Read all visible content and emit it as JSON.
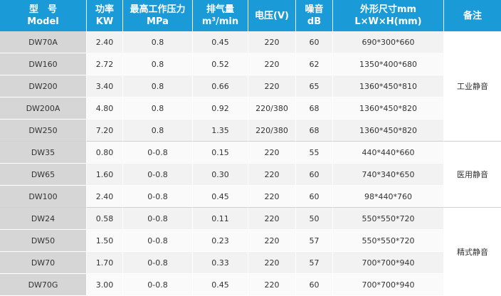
{
  "headers": {
    "model": {
      "l1": "型　号",
      "l2": "Model"
    },
    "power": {
      "l1": "功率",
      "l2": "KW"
    },
    "pressure": {
      "l1": "最高工作压力",
      "l2": "MPa"
    },
    "flow": {
      "l1": "排气量",
      "l2": "m³/min"
    },
    "voltage": {
      "l1": "电压(V)"
    },
    "noise": {
      "l1": "噪音",
      "l2": "dB"
    },
    "dims": {
      "l1": "外形尺寸mm",
      "l2": "L×W×H(mm)"
    },
    "note": {
      "l1": "备注"
    }
  },
  "groups": [
    {
      "note": "工业静音",
      "rows": [
        {
          "model": "DW70A",
          "power": "2.40",
          "pressure": "0.8",
          "flow": "0.45",
          "voltage": "220",
          "noise": "60",
          "dims": "690*300*660"
        },
        {
          "model": "DW160",
          "power": "2.72",
          "pressure": "0.8",
          "flow": "0.52",
          "voltage": "220",
          "noise": "62",
          "dims": "1350*400*680"
        },
        {
          "model": "DW200",
          "power": "3.40",
          "pressure": "0.8",
          "flow": "0.66",
          "voltage": "220",
          "noise": "65",
          "dims": "1360*450*810"
        },
        {
          "model": "DW200A",
          "power": "4.80",
          "pressure": "0.8",
          "flow": "0.92",
          "voltage": "220/380",
          "noise": "68",
          "dims": "1360*450*820"
        },
        {
          "model": "DW250",
          "power": "7.20",
          "pressure": "0.8",
          "flow": "1.35",
          "voltage": "220/380",
          "noise": "68",
          "dims": "1360*450*820"
        }
      ]
    },
    {
      "note": "医用静音",
      "rows": [
        {
          "model": "DW35",
          "power": "0.80",
          "pressure": "0-0.8",
          "flow": "0.15",
          "voltage": "220",
          "noise": "55",
          "dims": "440*440*660"
        },
        {
          "model": "DW65",
          "power": "1.60",
          "pressure": "0-0.8",
          "flow": "0.30",
          "voltage": "220",
          "noise": "60",
          "dims": "740*340*650"
        },
        {
          "model": "DW100",
          "power": "2.40",
          "pressure": "0-0.8",
          "flow": "0.45",
          "voltage": "220",
          "noise": "60",
          "dims": "98*440*760"
        }
      ]
    },
    {
      "note": "精式静音",
      "rows": [
        {
          "model": "DW24",
          "power": "0.58",
          "pressure": "0-0.8",
          "flow": "0.11",
          "voltage": "220",
          "noise": "50",
          "dims": "550*550*720"
        },
        {
          "model": "DW50",
          "power": "1.50",
          "pressure": "0-0.8",
          "flow": "0.23",
          "voltage": "220",
          "noise": "57",
          "dims": "550*550*720"
        },
        {
          "model": "DW70",
          "power": "1.70",
          "pressure": "0-0.8",
          "flow": "0.33",
          "voltage": "220",
          "noise": "57",
          "dims": "700*700*940"
        },
        {
          "model": "DW70G",
          "power": "3.00",
          "pressure": "0-0.8",
          "flow": "0.45",
          "voltage": "220",
          "noise": "60",
          "dims": "700*700*940"
        }
      ]
    }
  ]
}
